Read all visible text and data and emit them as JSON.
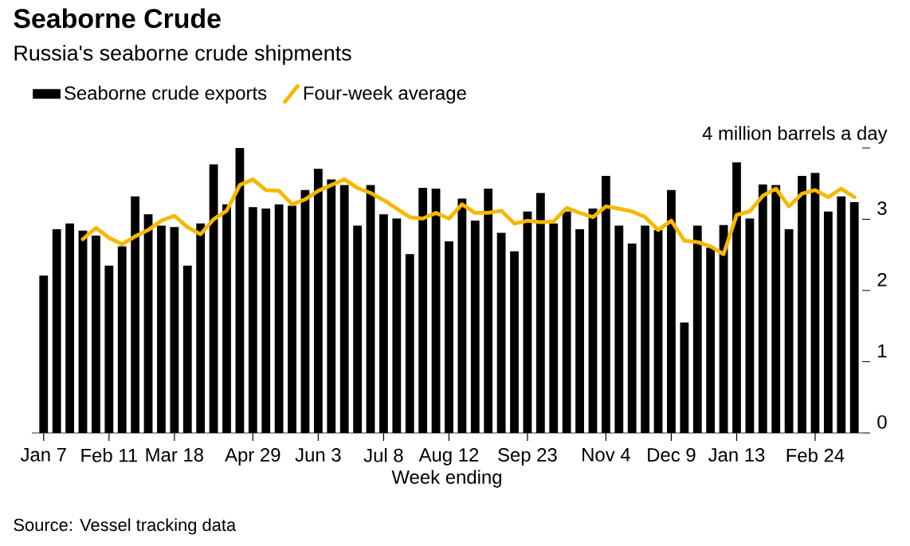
{
  "chart_data": {
    "type": "bar",
    "title": "Seaborne Crude",
    "subtitle": "Russia's seaborne crude shipments",
    "xlabel": "Week ending",
    "categories": [
      "Jan 7",
      null,
      null,
      null,
      null,
      "Feb 11",
      null,
      null,
      null,
      null,
      "Mar 18",
      null,
      null,
      null,
      null,
      null,
      "Apr 29",
      null,
      null,
      null,
      null,
      "Jun 3",
      null,
      null,
      null,
      null,
      "Jul 8",
      null,
      null,
      null,
      null,
      "Aug 12",
      null,
      null,
      null,
      null,
      null,
      "Sep 23",
      null,
      null,
      null,
      null,
      null,
      "Nov 4",
      null,
      null,
      null,
      null,
      "Dec 9",
      null,
      null,
      null,
      null,
      "Jan 13",
      null,
      null,
      null,
      null,
      null,
      "Feb 24",
      null,
      null,
      null
    ],
    "series": [
      {
        "name": "Seaborne crude exports",
        "color": "#000000",
        "values": [
          2.21,
          2.86,
          2.94,
          2.84,
          2.77,
          2.35,
          2.62,
          3.32,
          3.07,
          2.91,
          2.89,
          2.35,
          2.94,
          3.77,
          3.21,
          4.0,
          3.17,
          3.15,
          3.21,
          3.19,
          3.41,
          3.71,
          3.56,
          3.48,
          2.91,
          3.48,
          3.07,
          3.01,
          2.51,
          3.44,
          3.43,
          2.69,
          3.29,
          2.98,
          3.43,
          2.81,
          2.55,
          3.11,
          3.37,
          2.94,
          3.11,
          2.86,
          3.15,
          3.61,
          2.91,
          2.66,
          2.91,
          2.85,
          3.41,
          1.55,
          2.91,
          2.6,
          2.92,
          3.8,
          3.01,
          3.49,
          3.48,
          2.86,
          3.61,
          3.65,
          3.11,
          3.32,
          3.24
        ]
      },
      {
        "name": "Four-week average",
        "type": "line",
        "color": "#f5b800",
        "values": [
          null,
          null,
          null,
          2.72,
          2.88,
          2.74,
          2.65,
          2.76,
          2.85,
          2.98,
          3.05,
          2.89,
          2.79,
          3.0,
          3.12,
          3.48,
          3.56,
          3.41,
          3.4,
          3.21,
          3.28,
          3.4,
          3.48,
          3.56,
          3.44,
          3.37,
          3.27,
          3.15,
          3.03,
          3.01,
          3.09,
          3.01,
          3.21,
          3.09,
          3.09,
          3.12,
          2.94,
          2.98,
          2.96,
          2.97,
          3.16,
          3.09,
          3.03,
          3.18,
          3.15,
          3.11,
          3.03,
          2.85,
          2.98,
          2.7,
          2.68,
          2.62,
          2.51,
          3.06,
          3.11,
          3.33,
          3.43,
          3.18,
          3.36,
          3.41,
          3.31,
          3.43,
          3.31
        ]
      }
    ],
    "ylim": [
      0,
      4
    ],
    "yticks": [
      0,
      1,
      2,
      3,
      {
        "value": 4,
        "label": "4 million barrels a day"
      }
    ],
    "legend": "top left",
    "annotations": [
      "Source: Vessel tracking data"
    ]
  }
}
